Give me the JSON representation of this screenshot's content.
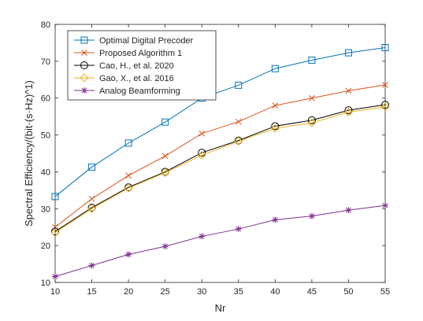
{
  "chart_data": {
    "type": "line",
    "title": "",
    "xlabel": "Nr",
    "ylabel": "Spectral Efficiency/(bit·(s·Hz)^1)",
    "x": [
      10,
      15,
      20,
      25,
      30,
      35,
      40,
      45,
      50,
      55
    ],
    "xlim": [
      10,
      55
    ],
    "ylim": [
      10,
      80
    ],
    "xticks": [
      "10",
      "15",
      "20",
      "25",
      "30",
      "35",
      "40",
      "45",
      "50",
      "55"
    ],
    "yticks": [
      "10",
      "20",
      "30",
      "40",
      "50",
      "60",
      "70",
      "80"
    ],
    "grid": false,
    "legend_position": "top-left",
    "series": [
      {
        "name": "Optimal Digital Precoder",
        "color": "#0072BD",
        "marker": "square",
        "values": [
          33.3,
          41.3,
          47.8,
          53.5,
          60.0,
          63.5,
          68.0,
          70.3,
          72.3,
          73.7
        ]
      },
      {
        "name": "Proposed Algorithm 1",
        "color": "#D95319",
        "marker": "x",
        "values": [
          25.0,
          32.7,
          39.0,
          44.3,
          50.4,
          53.6,
          58.0,
          60.0,
          62.0,
          63.6
        ]
      },
      {
        "name": "Cao, H., et al. 2020",
        "color": "#000000",
        "marker": "circle",
        "values": [
          23.8,
          30.3,
          35.8,
          40.0,
          45.2,
          48.5,
          52.4,
          54.0,
          56.7,
          58.2
        ]
      },
      {
        "name": "Gao, X., et al. 2016",
        "color": "#EDB120",
        "marker": "diamond",
        "values": [
          23.5,
          30.0,
          35.6,
          39.8,
          44.5,
          48.3,
          51.8,
          53.3,
          56.2,
          57.6
        ]
      },
      {
        "name": "Analog Beamforming",
        "color": "#7E2F8E",
        "marker": "asterisk",
        "values": [
          11.6,
          14.6,
          17.6,
          19.8,
          22.5,
          24.5,
          27.0,
          28.0,
          29.6,
          30.9
        ]
      }
    ]
  }
}
